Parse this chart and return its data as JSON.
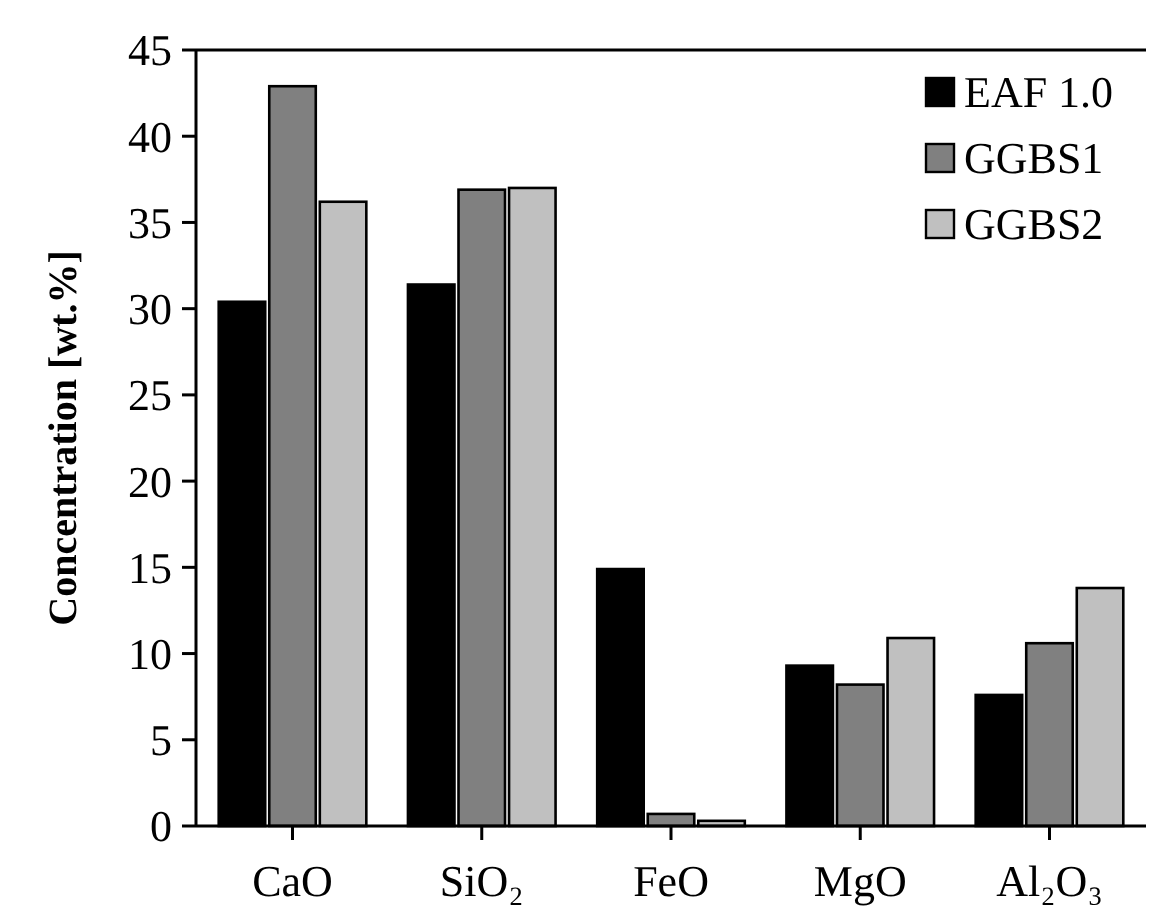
{
  "chart_data": {
    "type": "bar",
    "ylabel": "Concentration [wt.%]",
    "categories": [
      "CaO",
      "SiO₂",
      "FeO",
      "MgO",
      "Al₂O₃"
    ],
    "series": [
      {
        "name": "EAF 1.0",
        "color": "#000000",
        "values": [
          30.4,
          31.4,
          14.9,
          9.3,
          7.6
        ]
      },
      {
        "name": "GGBS1",
        "color": "#808080",
        "values": [
          42.9,
          36.9,
          0.7,
          8.2,
          10.6
        ]
      },
      {
        "name": "GGBS2",
        "color": "#c0c0c0",
        "values": [
          36.2,
          37.0,
          0.3,
          10.9,
          13.8
        ]
      }
    ],
    "ylim": [
      0,
      45
    ],
    "yticks": [
      0,
      5,
      10,
      15,
      20,
      25,
      30,
      35,
      40,
      45
    ],
    "grid": false,
    "legend": "top right"
  }
}
